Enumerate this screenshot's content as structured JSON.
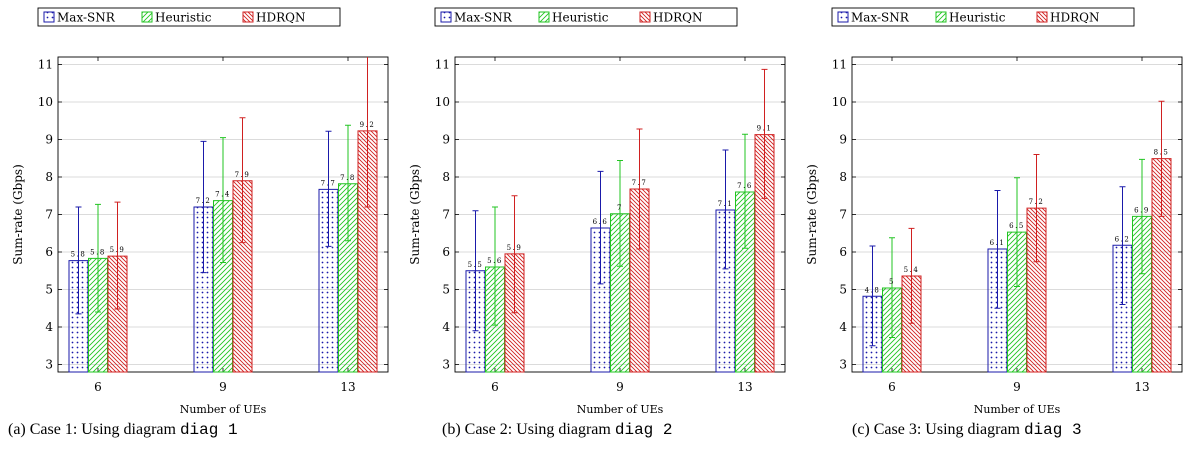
{
  "colors": {
    "max_snr": "#1a1aaa",
    "heuristic": "#22c422",
    "hdrqn": "#d02020",
    "grid": "#cfcfcf"
  },
  "panels": [
    {
      "caption_prefix": "(a) Case 1: Using diagram ",
      "caption_code": "diag 1"
    },
    {
      "caption_prefix": "(b) Case 2: Using diagram ",
      "caption_code": "diag 2"
    },
    {
      "caption_prefix": "(c) Case 3: Using diagram ",
      "caption_code": "diag 3"
    }
  ],
  "chart_data": [
    {
      "type": "bar",
      "categories": [
        "6",
        "9",
        "13"
      ],
      "xlabel": "Number of UEs",
      "ylabel": "Sum-rate (Gbps)",
      "ylim": [
        2.8,
        11.2
      ],
      "yticks": [
        "3",
        "4",
        "5",
        "6",
        "7",
        "8",
        "9",
        "10",
        "11"
      ],
      "grid": true,
      "legend_position": "top",
      "series": [
        {
          "name": "Max-SNR",
          "pattern": "dots",
          "values": [
            5.77,
            7.2,
            7.67
          ],
          "labels": [
            "5.8",
            "7.2",
            "7.7"
          ],
          "error_low": [
            4.35,
            5.45,
            6.15
          ],
          "error_high": [
            7.2,
            8.95,
            9.22
          ]
        },
        {
          "name": "Heuristic",
          "pattern": "diagonal",
          "values": [
            5.83,
            7.37,
            7.82
          ],
          "labels": [
            "5.8",
            "7.4",
            "7.8"
          ],
          "error_low": [
            4.4,
            5.72,
            6.3
          ],
          "error_high": [
            7.27,
            9.05,
            9.38
          ]
        },
        {
          "name": "HDRQN",
          "pattern": "crosshatch",
          "values": [
            5.89,
            7.9,
            9.23
          ],
          "labels": [
            "5.9",
            "7.9",
            "9.2"
          ],
          "error_low": [
            4.48,
            6.25,
            7.2
          ],
          "error_high": [
            7.33,
            9.58,
            11.3
          ]
        }
      ]
    },
    {
      "type": "bar",
      "categories": [
        "6",
        "9",
        "13"
      ],
      "xlabel": "Number of UEs",
      "ylabel": "Sum-rate (Gbps)",
      "ylim": [
        2.8,
        11.2
      ],
      "yticks": [
        "3",
        "4",
        "5",
        "6",
        "7",
        "8",
        "9",
        "10",
        "11"
      ],
      "grid": true,
      "legend_position": "top",
      "series": [
        {
          "name": "Max-SNR",
          "pattern": "dots",
          "values": [
            5.5,
            6.64,
            7.12
          ],
          "labels": [
            "5.5",
            "6.6",
            "7.1"
          ],
          "error_low": [
            3.9,
            5.15,
            5.55
          ],
          "error_high": [
            7.1,
            8.15,
            8.72
          ]
        },
        {
          "name": "Heuristic",
          "pattern": "diagonal",
          "values": [
            5.6,
            7.02,
            7.6
          ],
          "labels": [
            "5.6",
            "7",
            "7.6"
          ],
          "error_low": [
            4.05,
            5.62,
            6.1
          ],
          "error_high": [
            7.2,
            8.44,
            9.14
          ]
        },
        {
          "name": "HDRQN",
          "pattern": "crosshatch",
          "values": [
            5.95,
            7.68,
            9.13
          ],
          "labels": [
            "5.9",
            "7.7",
            "9.1"
          ],
          "error_low": [
            4.38,
            6.08,
            7.43
          ],
          "error_high": [
            7.5,
            9.28,
            10.87
          ]
        }
      ]
    },
    {
      "type": "bar",
      "categories": [
        "6",
        "9",
        "13"
      ],
      "xlabel": "Number of UEs",
      "ylabel": "Sum-rate (Gbps)",
      "ylim": [
        2.8,
        11.2
      ],
      "yticks": [
        "3",
        "4",
        "5",
        "6",
        "7",
        "8",
        "9",
        "10",
        "11"
      ],
      "grid": true,
      "legend_position": "top",
      "series": [
        {
          "name": "Max-SNR",
          "pattern": "dots",
          "values": [
            4.82,
            6.08,
            6.18
          ],
          "labels": [
            "4.8",
            "6.1",
            "6.2"
          ],
          "error_low": [
            3.5,
            4.5,
            4.6
          ],
          "error_high": [
            6.16,
            7.64,
            7.74
          ]
        },
        {
          "name": "Heuristic",
          "pattern": "diagonal",
          "values": [
            5.04,
            6.53,
            6.95
          ],
          "labels": [
            "5",
            "6.5",
            "6.9"
          ],
          "error_low": [
            3.72,
            5.08,
            5.42
          ],
          "error_high": [
            6.38,
            7.98,
            8.47
          ]
        },
        {
          "name": "HDRQN",
          "pattern": "crosshatch",
          "values": [
            5.36,
            7.17,
            8.49
          ],
          "labels": [
            "5.4",
            "7.2",
            "8.5"
          ],
          "error_low": [
            4.1,
            5.74,
            6.95
          ],
          "error_high": [
            6.63,
            8.6,
            10.02
          ]
        }
      ]
    }
  ]
}
